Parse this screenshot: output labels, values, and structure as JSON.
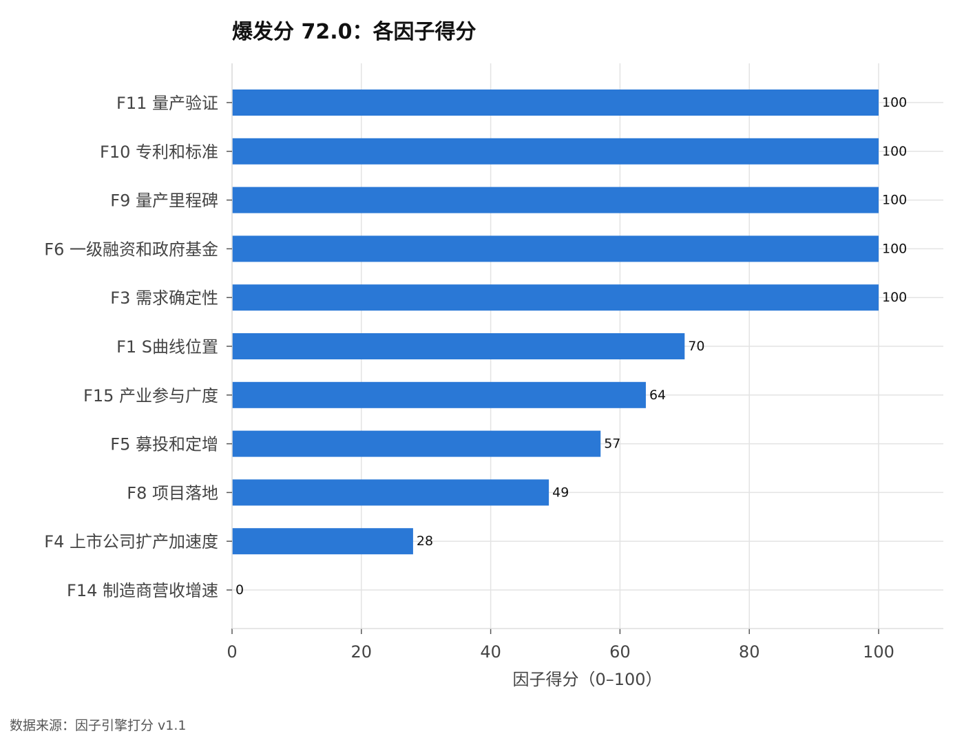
{
  "chart_data": {
    "type": "bar",
    "orientation": "horizontal",
    "title": "爆发分 72.0：各因子得分",
    "xlabel": "因子得分（0–100）",
    "ylabel": "",
    "xlim": [
      0,
      110
    ],
    "xticks": [
      0,
      20,
      40,
      60,
      80,
      100
    ],
    "grid": true,
    "categories": [
      "F11 量产验证",
      "F10 专利和标准",
      "F9 量产里程碑",
      "F6 一级融资和政府基金",
      "F3 需求确定性",
      "F1 S曲线位置",
      "F15 产业参与广度",
      "F5 募投和定增",
      "F8 项目落地",
      "F4 上市公司扩产加速度",
      "F14 制造商营收增速"
    ],
    "values": [
      100,
      100,
      100,
      100,
      100,
      70,
      64,
      57,
      49,
      28,
      0
    ],
    "value_labels": [
      "100",
      "100",
      "100",
      "100",
      "100",
      "70",
      "64",
      "57",
      "49",
      "28",
      "0"
    ],
    "bar_color": "#2a78d6",
    "source": "数据来源：因子引擎打分 v1.1"
  }
}
